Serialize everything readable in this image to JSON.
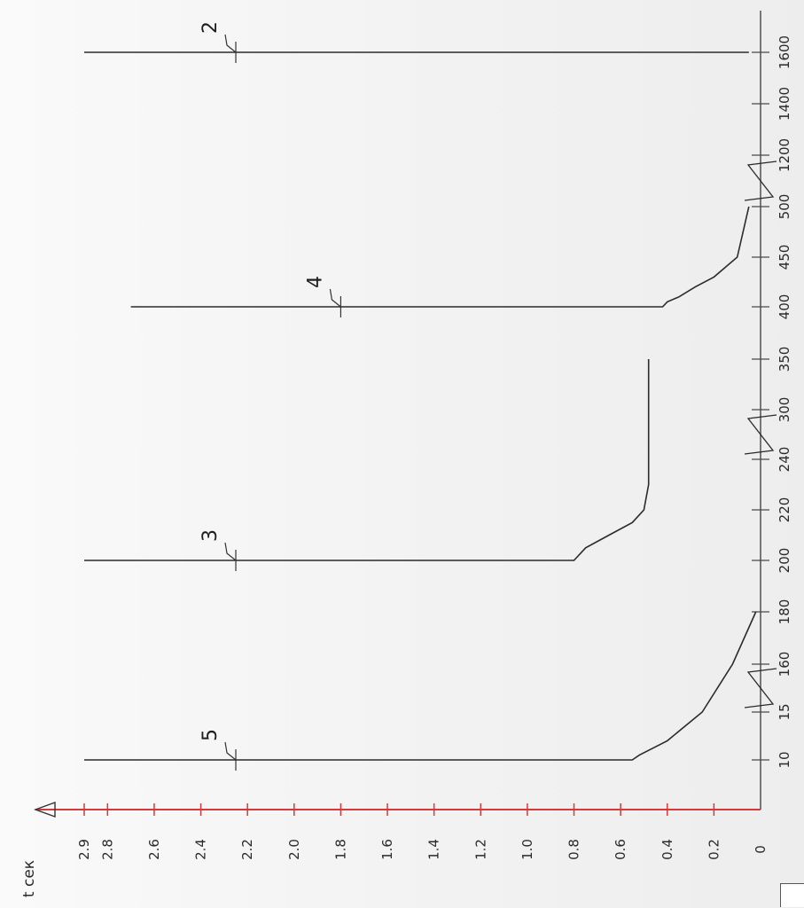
{
  "chart_data": {
    "type": "line",
    "orientation": "rotated-90-ccw",
    "title": "",
    "ylabel": "t сек",
    "xlabel": "",
    "x_ticks": [
      "10",
      "15",
      "160",
      "180",
      "200",
      "220",
      "240",
      "300",
      "350",
      "400",
      "450",
      "500",
      "1200",
      "1400",
      "1600"
    ],
    "y_ticks": [
      "0",
      "0.2",
      "0.4",
      "0.6",
      "0.8",
      "1.0",
      "1.2",
      "1.4",
      "1.6",
      "1.8",
      "2.0",
      "2.2",
      "2.4",
      "2.6",
      "2.8",
      "2.9"
    ],
    "ylim": [
      0,
      2.9
    ],
    "axis_breaks": [
      "15-160",
      "240-300",
      "500-1200"
    ],
    "series": [
      {
        "label": "5",
        "x": [
          10,
          10,
          10.5,
          12,
          15,
          160,
          180
        ],
        "y": [
          2.9,
          0.55,
          0.52,
          0.4,
          0.25,
          0.12,
          0.02
        ]
      },
      {
        "label": "3",
        "x": [
          200,
          200,
          205,
          210,
          215,
          220,
          230,
          350
        ],
        "y": [
          2.9,
          0.8,
          0.75,
          0.65,
          0.55,
          0.5,
          0.48,
          0.48
        ]
      },
      {
        "label": "4",
        "x": [
          400,
          400,
          405,
          410,
          420,
          430,
          450,
          500
        ],
        "y": [
          2.7,
          0.42,
          0.4,
          0.35,
          0.28,
          0.2,
          0.1,
          0.05
        ]
      },
      {
        "label": "2",
        "x": [
          1600,
          1600
        ],
        "y": [
          2.9,
          0.05
        ]
      }
    ],
    "colors": {
      "axis": "#d43a3a",
      "curve": "#2b2b2b",
      "grid": "#8a8a8a"
    }
  }
}
